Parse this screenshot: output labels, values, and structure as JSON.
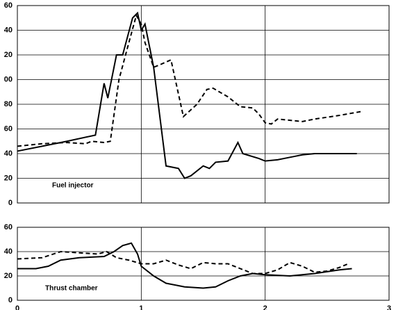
{
  "chart_data": [
    {
      "type": "line",
      "label": "Fuel injector",
      "xlim": [
        0,
        3
      ],
      "xticks": [
        0,
        1,
        2,
        3
      ],
      "show_xtick_labels": false,
      "ylim": [
        0,
        160
      ],
      "yticks": [
        0,
        20,
        40,
        {
          "value": 60,
          "label": "60"
        },
        80,
        {
          "value": 100,
          "label": "00"
        },
        {
          "value": 120,
          "label": "20"
        },
        {
          "value": 140,
          "label": "40"
        },
        {
          "value": 160,
          "label": "60"
        }
      ],
      "grid": true,
      "series": [
        {
          "color": "#000000",
          "dash": false,
          "x": [
            0,
            0.2,
            0.4,
            0.63,
            0.7,
            0.73,
            0.8,
            0.85,
            0.93,
            0.97,
            1.0,
            1.03,
            1.1,
            1.15,
            1.2,
            1.3,
            1.35,
            1.4,
            1.5,
            1.55,
            1.6,
            1.7,
            1.78,
            1.82,
            1.95,
            2.0,
            2.1,
            2.2,
            2.3,
            2.4,
            2.74
          ],
          "values": [
            42,
            46,
            50,
            55,
            97,
            85,
            120,
            120,
            150,
            154,
            140,
            145,
            110,
            70,
            30,
            28,
            20,
            22,
            30,
            28,
            33,
            34,
            49,
            40,
            36,
            34,
            35,
            37,
            39,
            40,
            40
          ]
        },
        {
          "color": "#000000",
          "dash": true,
          "x": [
            0,
            0.2,
            0.4,
            0.55,
            0.6,
            0.7,
            0.75,
            0.82,
            0.9,
            0.96,
            1.0,
            1.03,
            1.1,
            1.15,
            1.24,
            1.34,
            1.45,
            1.53,
            1.58,
            1.7,
            1.8,
            1.9,
            1.95,
            2.0,
            2.05,
            2.1,
            2.3,
            2.4,
            2.6,
            2.77
          ],
          "values": [
            46,
            48,
            49,
            48,
            50,
            49,
            50,
            100,
            130,
            152,
            145,
            130,
            110,
            112,
            116,
            70,
            80,
            92,
            93,
            86,
            78,
            77,
            72,
            65,
            64,
            68,
            66,
            68,
            71,
            74
          ]
        }
      ]
    },
    {
      "type": "line",
      "label": "Thrust chamber",
      "xlim": [
        0,
        3
      ],
      "xticks": [
        0,
        1,
        2,
        3
      ],
      "show_xtick_labels": true,
      "ylim": [
        0,
        60
      ],
      "yticks": [
        0,
        20,
        40,
        60
      ],
      "grid": true,
      "series": [
        {
          "color": "#000000",
          "dash": false,
          "x": [
            0,
            0.15,
            0.25,
            0.35,
            0.5,
            0.7,
            0.78,
            0.85,
            0.92,
            0.97,
            1.0,
            1.1,
            1.2,
            1.35,
            1.5,
            1.6,
            1.7,
            1.8,
            1.9,
            2.0,
            2.2,
            2.4,
            2.6,
            2.7
          ],
          "values": [
            26,
            26,
            28,
            33,
            35,
            36,
            40,
            45,
            47,
            38,
            28,
            20,
            14,
            11,
            10,
            11,
            16,
            20,
            22,
            21,
            20,
            22,
            25,
            26
          ]
        },
        {
          "color": "#000000",
          "dash": true,
          "x": [
            0,
            0.2,
            0.35,
            0.5,
            0.65,
            0.72,
            0.8,
            0.9,
            1.0,
            1.1,
            1.2,
            1.3,
            1.4,
            1.5,
            1.6,
            1.7,
            1.8,
            1.9,
            2.0,
            2.1,
            2.2,
            2.3,
            2.4,
            2.5,
            2.6,
            2.67
          ],
          "values": [
            34,
            35,
            40,
            39,
            38,
            40,
            35,
            33,
            30,
            30,
            33,
            29,
            26,
            31,
            30,
            30,
            26,
            22,
            22,
            25,
            31,
            28,
            23,
            24,
            27,
            30
          ]
        }
      ]
    }
  ]
}
